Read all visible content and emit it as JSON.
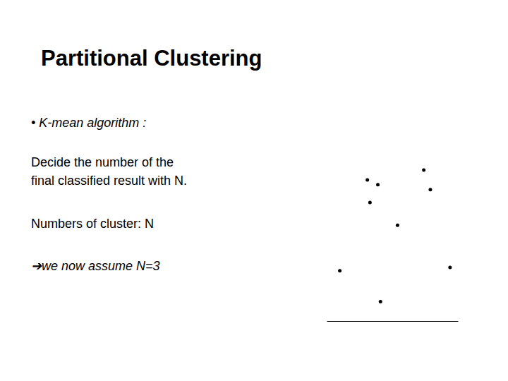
{
  "slide": {
    "title": "Partitional Clustering",
    "bullet": "• K-mean algorithm :",
    "lines": [
      "Decide the number of the",
      "final classified result with N.",
      "Numbers of cluster: N"
    ],
    "note": "➔we now assume N=3"
  },
  "chart_data": {
    "type": "scatter",
    "x": [
      3.1,
      3.9,
      7.4,
      7.9,
      3.3,
      5.4,
      1.0,
      9.4,
      4.1
    ],
    "values": [
      8.7,
      8.4,
      9.3,
      8.1,
      7.3,
      5.9,
      3.1,
      3.3,
      1.2
    ],
    "xlim": [
      0,
      10
    ],
    "ylim": [
      0,
      10
    ],
    "tick_labels": false,
    "marker": "circle",
    "color": "#000000"
  }
}
